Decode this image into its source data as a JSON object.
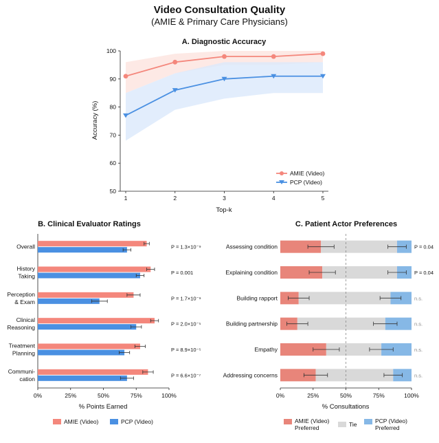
{
  "title": "Video Consultation Quality",
  "subtitle": "(AMIE & Primary Care Physicians)",
  "colors": {
    "amie": "#f4877c",
    "pcp": "#4a90e2",
    "amie_band": "#fde3df",
    "pcp_band": "#dbe8fb",
    "tie": "#d9d9d9",
    "pref_amie": "#e8857a",
    "pref_pcp": "#86b8e6"
  },
  "chart_data": [
    {
      "type": "line",
      "title": "A. Diagnostic Accuracy",
      "xlabel": "Top-k",
      "ylabel": "Accuracy (%)",
      "x": [
        1,
        2,
        3,
        4,
        5
      ],
      "xticks": [
        "1",
        "2",
        "3",
        "4",
        "5"
      ],
      "ylim": [
        50,
        100
      ],
      "yticks": [
        "50",
        "60",
        "70",
        "80",
        "90",
        "100"
      ],
      "series": [
        {
          "name": "AMIE (Video)",
          "values": [
            91,
            96,
            98,
            98,
            99
          ],
          "lower": [
            85,
            92,
            95,
            95,
            96
          ],
          "upper": [
            96,
            99,
            100,
            100,
            100
          ]
        },
        {
          "name": "PCP (Video)",
          "values": [
            77,
            86,
            90,
            91,
            91
          ],
          "lower": [
            68,
            79,
            83,
            85,
            85
          ],
          "upper": [
            85,
            92,
            96,
            96,
            96
          ]
        }
      ],
      "legend": "bottom-right"
    },
    {
      "type": "bar",
      "orientation": "horizontal",
      "title": "B. Clinical Evaluator Ratings",
      "xlabel": "% Points Earned",
      "xlim": [
        0,
        100
      ],
      "xticks": [
        "0%",
        "25%",
        "50%",
        "75%",
        "100%"
      ],
      "categories": [
        [
          "Overall"
        ],
        [
          "History",
          "Taking"
        ],
        [
          "Perception",
          "& Exam"
        ],
        [
          "Clinical",
          "Reasoning"
        ],
        [
          "Treatment",
          "Planning"
        ],
        [
          "Communi-",
          "cation"
        ]
      ],
      "series": [
        {
          "name": "AMIE (Video)",
          "values": [
            83,
            86,
            73,
            89,
            78,
            84
          ],
          "errors": [
            2,
            3,
            5,
            3,
            4,
            4
          ]
        },
        {
          "name": "PCP (Video)",
          "values": [
            68,
            78,
            47,
            75,
            66,
            68
          ],
          "errors": [
            3,
            3,
            6,
            4,
            4,
            5
          ]
        }
      ],
      "pvalues": [
        "P = 1.3×10⁻⁹",
        "P = 0.001",
        "P = 1.7×10⁻⁹",
        "P = 2.0×10⁻⁵",
        "P = 8.9×10⁻⁵",
        "P = 6.6×10⁻⁷"
      ],
      "legend": "bottom"
    },
    {
      "type": "bar",
      "orientation": "horizontal",
      "stacked": true,
      "title": "C. Patient Actor Preferences",
      "xlabel": "% Consultations",
      "xlim": [
        0,
        100
      ],
      "xticks": [
        "0%",
        "25%",
        "50%",
        "75%",
        "100%"
      ],
      "categories": [
        "Assessing condition",
        "Explaining condition",
        "Building rapport",
        "Building partnership",
        "Empathy",
        "Addressing concerns"
      ],
      "series": [
        {
          "name": "AMIE (Video) Preferred",
          "values": [
            31,
            32,
            14,
            13,
            35,
            27
          ],
          "errors": [
            10,
            10,
            8,
            8,
            10,
            9
          ]
        },
        {
          "name": "Tie",
          "values": [
            58,
            57,
            70,
            67,
            42,
            59
          ]
        },
        {
          "name": "PCP (Video) Preferred",
          "values": [
            11,
            11,
            16,
            20,
            23,
            14
          ],
          "errors": [
            7,
            7,
            8,
            9,
            9,
            7
          ]
        }
      ],
      "significance": [
        "P = 0.04",
        "P = 0.04",
        "n.s.",
        "n.s.",
        "n.s.",
        "n.s."
      ],
      "legend": "bottom"
    }
  ]
}
